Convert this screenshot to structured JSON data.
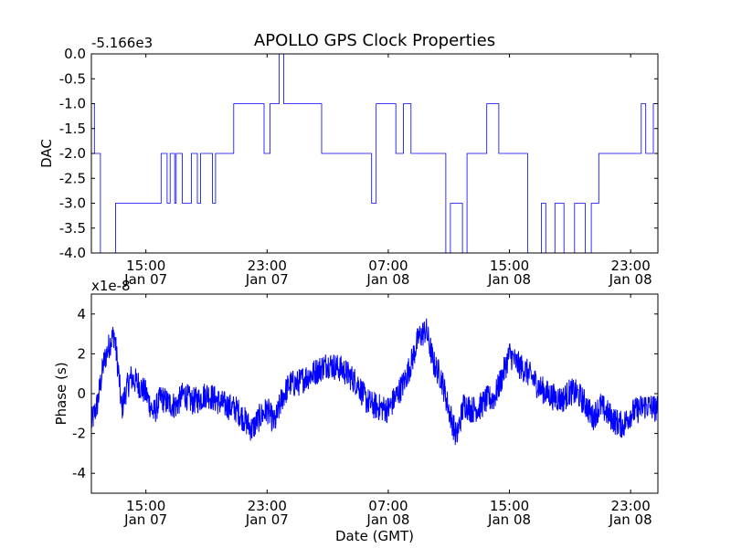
{
  "chart_data": [
    {
      "type": "line",
      "title": "APOLLO GPS Clock Properties",
      "ylabel": "DAC",
      "offset_text": "-5.166e3",
      "ylim": [
        -4.0,
        0.0
      ],
      "yticks": [
        "0.0",
        "-0.5",
        "-1.0",
        "-1.5",
        "-2.0",
        "-2.5",
        "-3.0",
        "-3.5",
        "-4.0"
      ],
      "xticks": [
        {
          "time": "15:00",
          "date": "Jan 07"
        },
        {
          "time": "23:00",
          "date": "Jan 07"
        },
        {
          "time": "07:00",
          "date": "Jan 08"
        },
        {
          "time": "15:00",
          "date": "Jan 08"
        },
        {
          "time": "23:00",
          "date": "Jan 08"
        }
      ],
      "xlim": [
        "Jan 07 11:24",
        "Jan 08 23:48"
      ],
      "line_color": "#0000ff",
      "series": [
        {
          "name": "",
          "x_hours": [
            11.4,
            11.6,
            12.0,
            13.0,
            13.5,
            16.0,
            16.4,
            16.6,
            16.9,
            17.0,
            17.4,
            18.0,
            18.4,
            18.6,
            19.4,
            19.6,
            20.2,
            20.8,
            22.3,
            22.8,
            23.2,
            23.8,
            24.1,
            24.3,
            24.6,
            26.6,
            27.0,
            29.9,
            30.2,
            31.5,
            32.0,
            32.5,
            33.1,
            34.8,
            35.1,
            35.9,
            36.2,
            37.5,
            38.3,
            39.0,
            40.2,
            41.1,
            41.4,
            42.0,
            42.6,
            43.3,
            44.0,
            44.4,
            44.9,
            45.1,
            46.8,
            47.7,
            48.0,
            48.5,
            48.8
          ],
          "y": [
            -1.0,
            -2.0,
            -4.0,
            -3.0,
            -3.0,
            -2.0,
            -3.0,
            -2.0,
            -3.0,
            -2.0,
            -3.0,
            -2.0,
            -3.0,
            -2.0,
            -3.0,
            -2.0,
            -2.0,
            -1.0,
            -1.0,
            -2.0,
            -1.0,
            -0.0,
            -1.0,
            -1.0,
            -1.0,
            -2.0,
            -2.0,
            -3.0,
            -1.0,
            -2.0,
            -1.0,
            -2.0,
            -2.0,
            -4.0,
            -3.0,
            -4.0,
            -2.0,
            -1.0,
            -2.0,
            -2.0,
            -4.0,
            -3.0,
            -4.0,
            -3.0,
            -4.0,
            -3.0,
            -4.0,
            -3.0,
            -2.0,
            -2.0,
            -2.0,
            -1.0,
            -2.0,
            -1.0,
            -2.0
          ]
        }
      ]
    },
    {
      "type": "line",
      "ylabel": "Phase (s)",
      "xlabel": "Date (GMT)",
      "offset_text": "x1e-8",
      "ylim": [
        -5,
        5
      ],
      "yticks": [
        "4",
        "2",
        "0",
        "-2",
        "-4"
      ],
      "xticks": [
        {
          "time": "15:00",
          "date": "Jan 07"
        },
        {
          "time": "23:00",
          "date": "Jan 07"
        },
        {
          "time": "07:00",
          "date": "Jan 08"
        },
        {
          "time": "15:00",
          "date": "Jan 08"
        },
        {
          "time": "23:00",
          "date": "Jan 08"
        }
      ],
      "xlim": [
        "Jan 07 11:24",
        "Jan 08 23:48"
      ],
      "line_color": "#0000ff",
      "series": [
        {
          "name": "",
          "x_hours": [
            11.4,
            11.8,
            12.2,
            12.6,
            12.9,
            13.2,
            13.4,
            13.7,
            14.0,
            14.5,
            15.0,
            15.5,
            16.0,
            16.5,
            17.0,
            17.5,
            18.0,
            18.5,
            19.0,
            20.0,
            21.0,
            22.0,
            22.5,
            23.0,
            23.5,
            24.0,
            24.5,
            25.0,
            25.5,
            26.0,
            27.0,
            28.0,
            29.0,
            29.5,
            30.0,
            31.0,
            32.0,
            32.5,
            33.0,
            33.5,
            34.0,
            34.5,
            35.0,
            35.5,
            36.0,
            36.5,
            37.0,
            37.5,
            38.0,
            38.5,
            39.0,
            39.5,
            40.0,
            40.5,
            41.0,
            41.5,
            42.0,
            42.5,
            43.0,
            43.5,
            44.0,
            44.5,
            45.0,
            45.5,
            46.0,
            46.5,
            47.0,
            47.5,
            48.0,
            48.5,
            48.8
          ],
          "y": [
            -1.5,
            -0.5,
            1.5,
            2.5,
            3.0,
            1.0,
            -0.8,
            0.2,
            0.8,
            0.5,
            0.0,
            -1.0,
            -0.2,
            -0.5,
            -0.6,
            0.0,
            -0.4,
            -0.3,
            0.0,
            -0.5,
            -0.8,
            -1.8,
            -1.2,
            -0.8,
            -1.5,
            -0.2,
            0.5,
            0.5,
            0.8,
            1.0,
            1.5,
            1.2,
            0.5,
            -0.3,
            -0.6,
            -0.8,
            0.5,
            1.5,
            2.8,
            3.2,
            1.5,
            0.8,
            -0.8,
            -2.2,
            -0.5,
            -0.8,
            -0.7,
            -0.3,
            -0.2,
            0.8,
            2.0,
            1.5,
            1.2,
            0.8,
            0.3,
            0.0,
            -0.2,
            -0.3,
            0.1,
            0.0,
            -0.5,
            -1.2,
            -0.6,
            -1.0,
            -1.4,
            -1.6,
            -1.0,
            -0.8,
            -0.6,
            -0.7,
            -0.8
          ]
        }
      ]
    }
  ]
}
